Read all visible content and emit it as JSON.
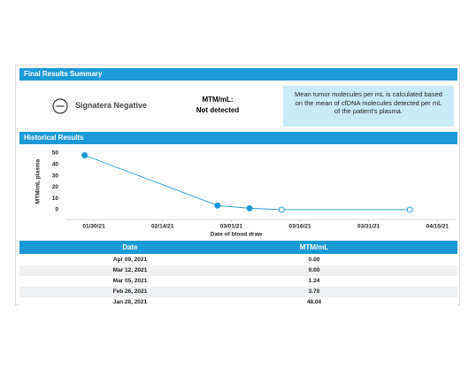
{
  "summary": {
    "title": "Final Results Summary",
    "result": "Signatera Negative",
    "metric_label": "MTM/mL:",
    "metric_value": "Not detected",
    "info": "Mean tumor molecules per mL is calculated based on the mean of cfDNA molecules detected per mL of the patient's plasma."
  },
  "historical": {
    "title": "Historical Results"
  },
  "chart_data": {
    "type": "line",
    "x_label": "Date of blood draw",
    "y_label": "MTM/mL plasma",
    "x": [
      "01/28/21",
      "02/26/21",
      "03/05/21",
      "03/12/21",
      "04/09/21"
    ],
    "series": [
      {
        "color": "#1a9ad6",
        "values": [
          48.04,
          3.7,
          1.24,
          0.0,
          0.0
        ]
      }
    ],
    "xlim": [
      "01/24/21",
      "04/19/21"
    ],
    "xticks": [
      "01/30/21",
      "02/14/21",
      "03/01/21",
      "03/16/21",
      "03/31/21",
      "04/15/21"
    ],
    "ylim": [
      -8,
      56
    ],
    "yticks": [
      0,
      10,
      20,
      30,
      40,
      50
    ],
    "grid": false
  },
  "table": {
    "columns": [
      "Date",
      "MTM/mL"
    ],
    "rows": [
      [
        "Apr 09, 2021",
        "0.00"
      ],
      [
        "Mar 12, 2021",
        "0.00"
      ],
      [
        "Mar 05, 2021",
        "1.24"
      ],
      [
        "Feb 26, 2021",
        "3.70"
      ],
      [
        "Jan 28, 2021",
        "48.04"
      ]
    ]
  }
}
